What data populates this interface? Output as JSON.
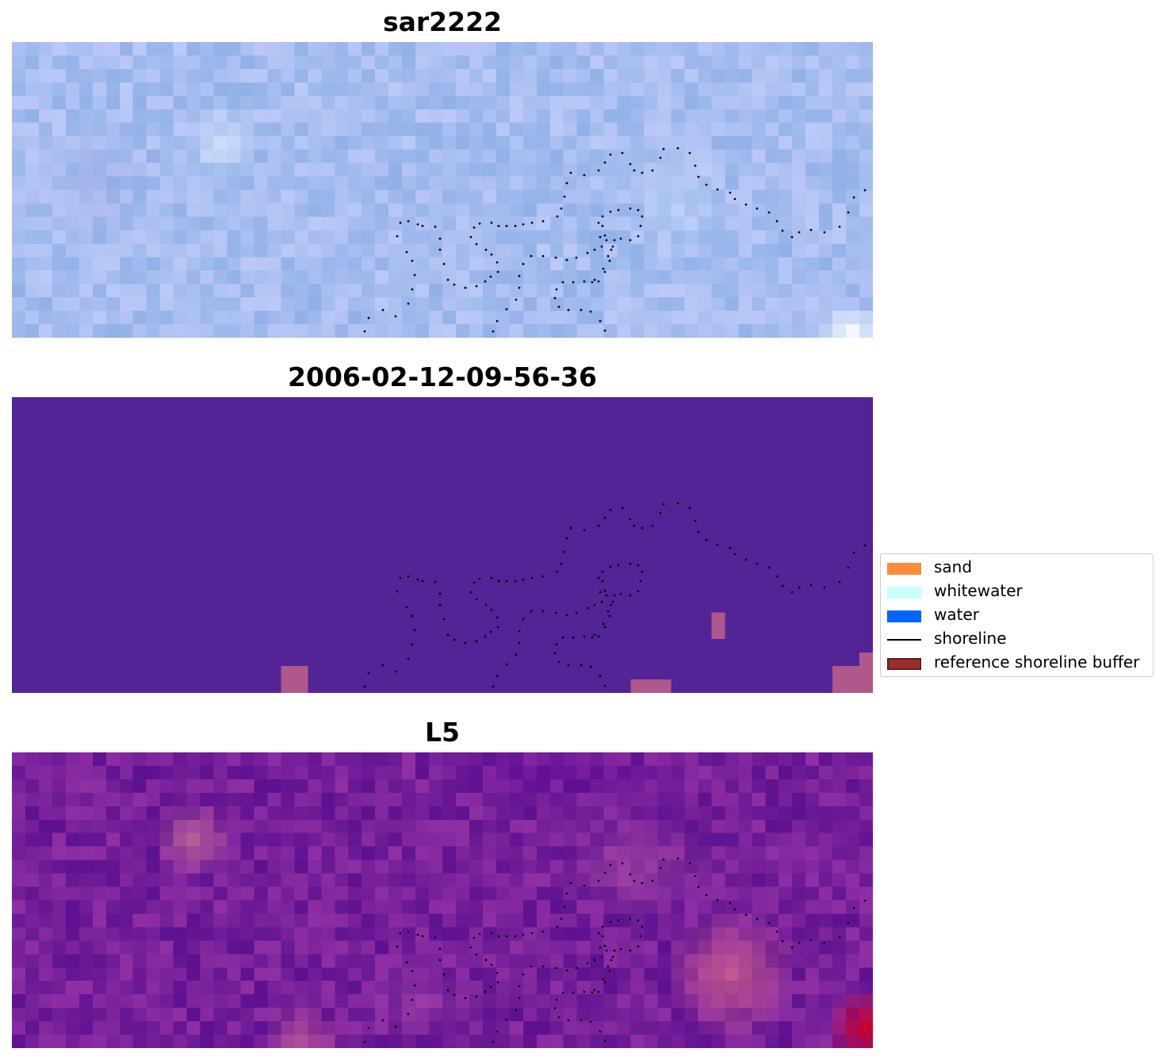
{
  "panels": [
    {
      "title": "sar2222"
    },
    {
      "title": "2006-02-12-09-56-36"
    },
    {
      "title": "L5"
    }
  ],
  "legend": {
    "items": [
      {
        "label": "sand",
        "color": "#ff8c3b",
        "kind": "patch"
      },
      {
        "label": "whitewater",
        "color": "#c8ffff",
        "kind": "patch"
      },
      {
        "label": "water",
        "color": "#0064ff",
        "kind": "patch"
      },
      {
        "label": "shoreline",
        "color": "#000000",
        "kind": "line"
      },
      {
        "label": "reference shoreline buffer",
        "color": "#9a2e2e",
        "kind": "patch"
      }
    ]
  },
  "colors": {
    "rgb_base": "#a7bdf0",
    "classified_background": "#522496",
    "classified_patch": "#b0588c",
    "index_base": "#76209a",
    "index_high": "#c0002e",
    "shoreline_dots": "#000000"
  }
}
